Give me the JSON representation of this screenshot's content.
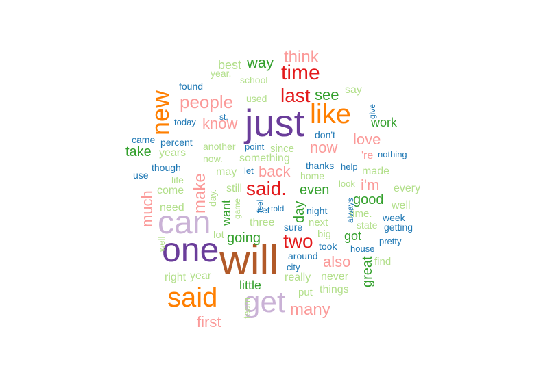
{
  "colors": {
    "dark_purple": "#6a3d9a",
    "light_purple": "#cab2d6",
    "dark_orange": "#ff7f00",
    "red": "#e31a1c",
    "pink": "#fb9a99",
    "dark_green": "#33a02c",
    "light_green": "#b2df8a",
    "blue": "#1f78b4",
    "brown": "#b15928"
  },
  "words": [
    {
      "text": "will",
      "color": "#b15928"
    },
    {
      "text": "just",
      "color": "#6a3d9a"
    },
    {
      "text": "one",
      "color": "#6a3d9a"
    },
    {
      "text": "can",
      "color": "#cab2d6"
    },
    {
      "text": "said",
      "color": "#ff7f00"
    },
    {
      "text": "like",
      "color": "#ff7f00"
    },
    {
      "text": "get",
      "color": "#cab2d6"
    },
    {
      "text": "new",
      "color": "#ff7f00"
    },
    {
      "text": "time",
      "color": "#e31a1c"
    },
    {
      "text": "said.",
      "color": "#e31a1c"
    },
    {
      "text": "last",
      "color": "#e31a1c"
    },
    {
      "text": "two",
      "color": "#e31a1c"
    },
    {
      "text": "people",
      "color": "#fb9a99"
    },
    {
      "text": "think",
      "color": "#fb9a99"
    },
    {
      "text": "make",
      "color": "#fb9a99"
    },
    {
      "text": "much",
      "color": "#fb9a99"
    },
    {
      "text": "know",
      "color": "#fb9a99"
    },
    {
      "text": "back",
      "color": "#fb9a99"
    },
    {
      "text": "now",
      "color": "#fb9a99"
    },
    {
      "text": "love",
      "color": "#fb9a99"
    },
    {
      "text": "i'm",
      "color": "#fb9a99"
    },
    {
      "text": "also",
      "color": "#fb9a99"
    },
    {
      "text": "first",
      "color": "#fb9a99"
    },
    {
      "text": "many",
      "color": "#fb9a99"
    },
    {
      "text": "'re",
      "color": "#fb9a99"
    },
    {
      "text": "way",
      "color": "#33a02c"
    },
    {
      "text": "see",
      "color": "#33a02c"
    },
    {
      "text": "work",
      "color": "#33a02c"
    },
    {
      "text": "take",
      "color": "#33a02c"
    },
    {
      "text": "even",
      "color": "#33a02c"
    },
    {
      "text": "good",
      "color": "#33a02c"
    },
    {
      "text": "day",
      "color": "#33a02c"
    },
    {
      "text": "going",
      "color": "#33a02c"
    },
    {
      "text": "got",
      "color": "#33a02c"
    },
    {
      "text": "want",
      "color": "#33a02c"
    },
    {
      "text": "little",
      "color": "#33a02c"
    },
    {
      "text": "great",
      "color": "#33a02c"
    },
    {
      "text": "best",
      "color": "#b2df8a"
    },
    {
      "text": "year.",
      "color": "#b2df8a"
    },
    {
      "text": "school",
      "color": "#b2df8a"
    },
    {
      "text": "say",
      "color": "#b2df8a"
    },
    {
      "text": "used",
      "color": "#b2df8a"
    },
    {
      "text": "years",
      "color": "#b2df8a"
    },
    {
      "text": "another",
      "color": "#b2df8a"
    },
    {
      "text": "since",
      "color": "#b2df8a"
    },
    {
      "text": "now.",
      "color": "#b2df8a"
    },
    {
      "text": "something",
      "color": "#b2df8a"
    },
    {
      "text": "may",
      "color": "#b2df8a"
    },
    {
      "text": "life",
      "color": "#b2df8a"
    },
    {
      "text": "come",
      "color": "#b2df8a"
    },
    {
      "text": "made",
      "color": "#b2df8a"
    },
    {
      "text": "still",
      "color": "#b2df8a"
    },
    {
      "text": "home",
      "color": "#b2df8a"
    },
    {
      "text": "look",
      "color": "#b2df8a"
    },
    {
      "text": "every",
      "color": "#b2df8a"
    },
    {
      "text": "need",
      "color": "#b2df8a"
    },
    {
      "text": "day.",
      "color": "#b2df8a"
    },
    {
      "text": "game",
      "color": "#b2df8a"
    },
    {
      "text": "well",
      "color": "#b2df8a"
    },
    {
      "text": "three",
      "color": "#b2df8a"
    },
    {
      "text": "next",
      "color": "#b2df8a"
    },
    {
      "text": "time.",
      "color": "#b2df8a"
    },
    {
      "text": "state",
      "color": "#b2df8a"
    },
    {
      "text": "well",
      "color": "#b2df8a"
    },
    {
      "text": "lot",
      "color": "#b2df8a"
    },
    {
      "text": "big",
      "color": "#b2df8a"
    },
    {
      "text": "right",
      "color": "#b2df8a"
    },
    {
      "text": "year",
      "color": "#b2df8a"
    },
    {
      "text": "really",
      "color": "#b2df8a"
    },
    {
      "text": "never",
      "color": "#b2df8a"
    },
    {
      "text": "find",
      "color": "#b2df8a"
    },
    {
      "text": "team",
      "color": "#b2df8a"
    },
    {
      "text": "put",
      "color": "#b2df8a"
    },
    {
      "text": "things",
      "color": "#b2df8a"
    },
    {
      "text": "found",
      "color": "#1f78b4"
    },
    {
      "text": "today",
      "color": "#1f78b4"
    },
    {
      "text": "st.",
      "color": "#1f78b4"
    },
    {
      "text": "don't",
      "color": "#1f78b4"
    },
    {
      "text": "give",
      "color": "#1f78b4"
    },
    {
      "text": "came",
      "color": "#1f78b4"
    },
    {
      "text": "percent",
      "color": "#1f78b4"
    },
    {
      "text": "point",
      "color": "#1f78b4"
    },
    {
      "text": "nothing",
      "color": "#1f78b4"
    },
    {
      "text": "though",
      "color": "#1f78b4"
    },
    {
      "text": "use",
      "color": "#1f78b4"
    },
    {
      "text": "let",
      "color": "#1f78b4"
    },
    {
      "text": "thanks",
      "color": "#1f78b4"
    },
    {
      "text": "help",
      "color": "#1f78b4"
    },
    {
      "text": "feel",
      "color": "#1f78b4"
    },
    {
      "text": "set",
      "color": "#1f78b4"
    },
    {
      "text": "told",
      "color": "#1f78b4"
    },
    {
      "text": "night",
      "color": "#1f78b4"
    },
    {
      "text": "always",
      "color": "#1f78b4"
    },
    {
      "text": "sure",
      "color": "#1f78b4"
    },
    {
      "text": "week",
      "color": "#1f78b4"
    },
    {
      "text": "getting",
      "color": "#1f78b4"
    },
    {
      "text": "took",
      "color": "#1f78b4"
    },
    {
      "text": "pretty",
      "color": "#1f78b4"
    },
    {
      "text": "house",
      "color": "#1f78b4"
    },
    {
      "text": "around",
      "color": "#1f78b4"
    },
    {
      "text": "city",
      "color": "#1f78b4"
    }
  ]
}
